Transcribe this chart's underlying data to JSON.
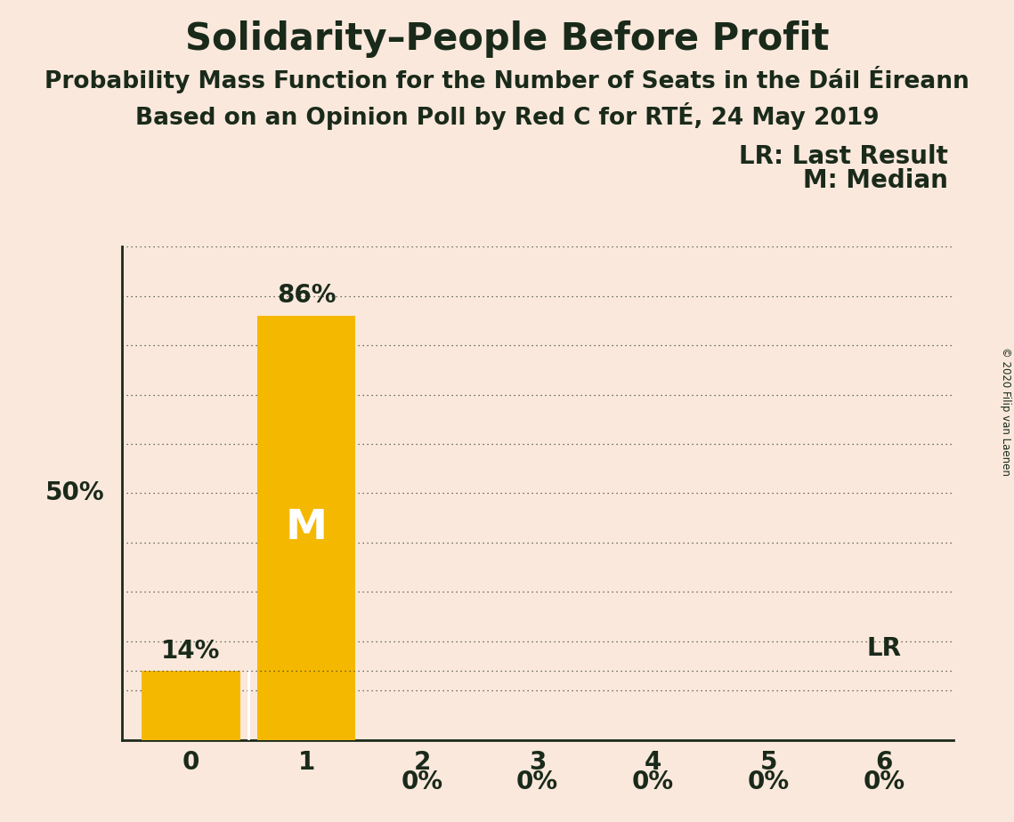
{
  "title": "Solidarity–People Before Profit",
  "subtitle1": "Probability Mass Function for the Number of Seats in the Dáil Éireann",
  "subtitle2": "Based on an Opinion Poll by Red C for RTÉ, 24 May 2019",
  "copyright": "© 2020 Filip van Laenen",
  "categories": [
    0,
    1,
    2,
    3,
    4,
    5,
    6
  ],
  "values": [
    14,
    86,
    0,
    0,
    0,
    0,
    0
  ],
  "bar_color": "#F5B800",
  "background_color": "#FAE8DC",
  "text_color": "#1a2a1a",
  "bar_text_color_outside": "#1a2a1a",
  "bar_text_color_inside": "#FFFFFF",
  "median_bar": 1,
  "last_result_bar": 6,
  "last_result_value": 14,
  "legend_lr": "LR: Last Result",
  "legend_m": "M: Median",
  "ylim": [
    0,
    100
  ],
  "title_fontsize": 30,
  "subtitle_fontsize": 19,
  "axis_fontsize": 20,
  "bar_label_fontsize": 20,
  "legend_fontsize": 20,
  "median_label_fontsize": 34
}
